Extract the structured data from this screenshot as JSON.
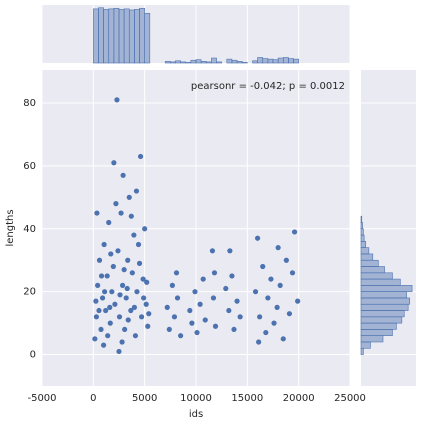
{
  "chart_data": [
    {
      "type": "scatter",
      "annotation": "pearsonr = -0.042; p = 0.0012",
      "x_label": "ids",
      "y_label": "lengths",
      "color": "#4c72b0",
      "grid": true,
      "xlim": [
        -5000,
        25000
      ],
      "ylim": [
        -10,
        90.5
      ],
      "xticks": [
        -5000,
        0,
        5000,
        10000,
        15000,
        20000,
        25000
      ],
      "yticks": [
        0,
        20,
        40,
        60,
        80
      ],
      "x": [
        150,
        300,
        420,
        600,
        750,
        900,
        1050,
        1200,
        1350,
        1500,
        1650,
        1800,
        1950,
        2000,
        2100,
        2300,
        2400,
        2550,
        2700,
        2850,
        2900,
        3050,
        3200,
        3350,
        3500,
        3650,
        3800,
        3950,
        4100,
        4250,
        4400,
        4600,
        4700,
        4850,
        5000,
        5150,
        5300,
        250,
        550,
        800,
        1100,
        1400,
        1700,
        2200,
        2600,
        3000,
        3400,
        3700,
        4000,
        4500,
        4900,
        5200,
        350,
        1000,
        1600,
        2800,
        3300,
        4200,
        5400,
        2500,
        7200,
        7400,
        7700,
        7900,
        8200,
        8500,
        8100,
        9400,
        9600,
        9900,
        10100,
        10400,
        10700,
        10900,
        11600,
        11700,
        11900,
        11800,
        12900,
        13200,
        13500,
        13700,
        14000,
        14300,
        13300,
        15800,
        16000,
        16200,
        16500,
        16800,
        17000,
        17300,
        17600,
        17900,
        18200,
        18500,
        18800,
        19100,
        19400,
        19600,
        19900,
        16100,
        18000
      ],
      "values": [
        5,
        12,
        22,
        30,
        8,
        18,
        35,
        14,
        25,
        42,
        10,
        20,
        28,
        61,
        16,
        81,
        33,
        12,
        45,
        22,
        57,
        8,
        18,
        30,
        50,
        14,
        26,
        38,
        6,
        20,
        35,
        63,
        12,
        24,
        40,
        16,
        9,
        17,
        14,
        25,
        20,
        6,
        32,
        48,
        19,
        27,
        11,
        44,
        15,
        29,
        18,
        23,
        45,
        3,
        15,
        4,
        21,
        52,
        13,
        1,
        15,
        8,
        22,
        12,
        18,
        6,
        26,
        14,
        10,
        20,
        7,
        16,
        24,
        11,
        33,
        18,
        9,
        26,
        21,
        14,
        25,
        8,
        17,
        12,
        33,
        20,
        37,
        12,
        28,
        7,
        18,
        24,
        10,
        15,
        22,
        5,
        30,
        13,
        26,
        39,
        17,
        4,
        34
      ]
    },
    {
      "type": "histogram",
      "color": "#4c72b0",
      "bins": [
        0,
        500,
        1000,
        1500,
        2000,
        2500,
        3000,
        3500,
        4000,
        4500,
        5000,
        5500,
        6000,
        6500,
        7000,
        7500,
        8000,
        8500,
        9000,
        9500,
        10000,
        10500,
        11000,
        11500,
        12000,
        12500,
        13000,
        13500,
        14000,
        14500,
        15000,
        15500,
        16000,
        16500,
        17000,
        17500,
        18000,
        18500,
        19000,
        19500,
        20000
      ],
      "values": [
        98,
        100,
        97,
        98,
        99,
        97,
        98,
        96,
        97,
        99,
        90,
        0,
        0,
        0,
        3,
        2,
        4,
        2,
        1,
        5,
        6,
        3,
        2,
        9,
        2,
        0,
        7,
        5,
        3,
        1,
        0,
        4,
        10,
        8,
        7,
        6,
        9,
        10,
        8,
        7
      ],
      "ylim": [
        0,
        105
      ]
    },
    {
      "type": "histogram-h",
      "color": "#4c72b0",
      "bins": [
        0,
        2,
        4,
        6,
        8,
        10,
        12,
        14,
        16,
        18,
        20,
        22,
        24,
        26,
        28,
        30,
        32,
        34,
        36,
        38,
        40,
        42,
        44
      ],
      "values": [
        3,
        12,
        28,
        40,
        45,
        52,
        55,
        60,
        62,
        58,
        65,
        50,
        40,
        30,
        22,
        15,
        10,
        6,
        4,
        3,
        2,
        1
      ],
      "xlim": [
        0,
        70
      ]
    }
  ]
}
